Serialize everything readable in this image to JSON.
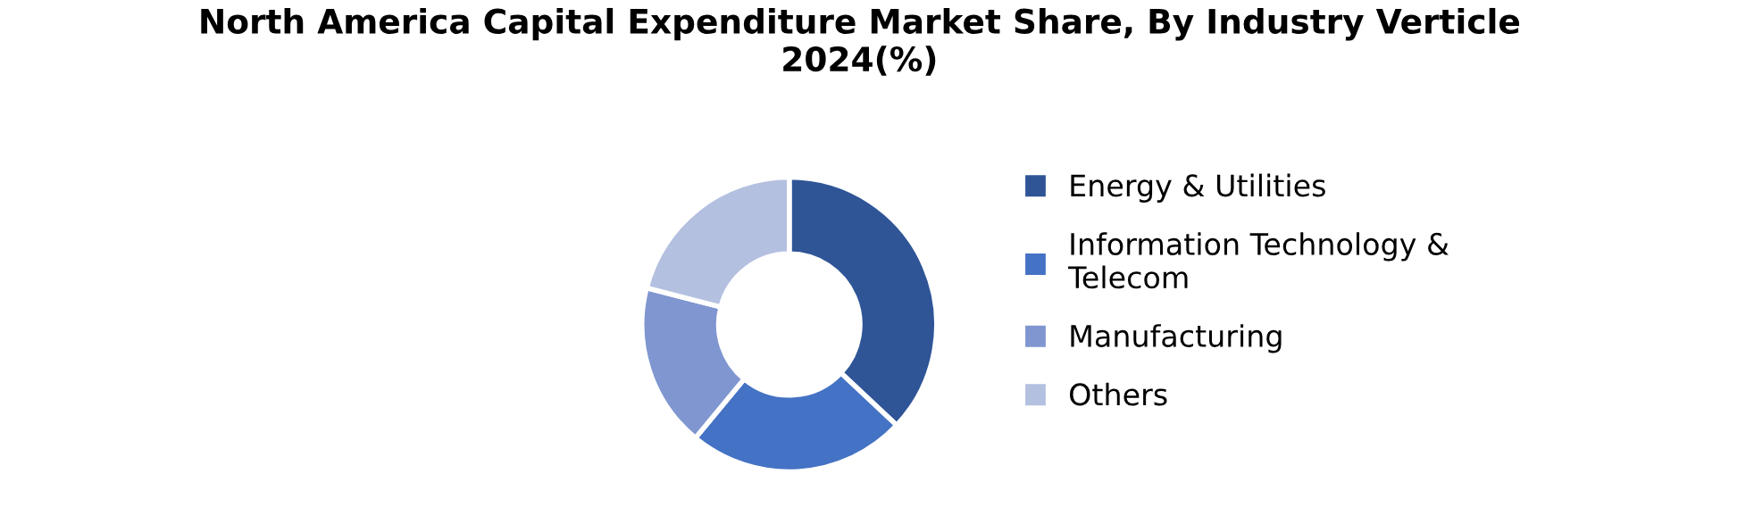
{
  "chart_data": {
    "type": "donut",
    "title": "North America Capital Expenditure Market Share, By Industry Verticle\n2024(%)",
    "categories": [
      "Energy & Utilities",
      "Information Technology &\nTelecom",
      "Manufacturing",
      "Others"
    ],
    "values": [
      37,
      24,
      18,
      21
    ],
    "colors": [
      "#2f5597",
      "#4472c4",
      "#7f96d0",
      "#b4c0e0"
    ],
    "legend": "right"
  }
}
